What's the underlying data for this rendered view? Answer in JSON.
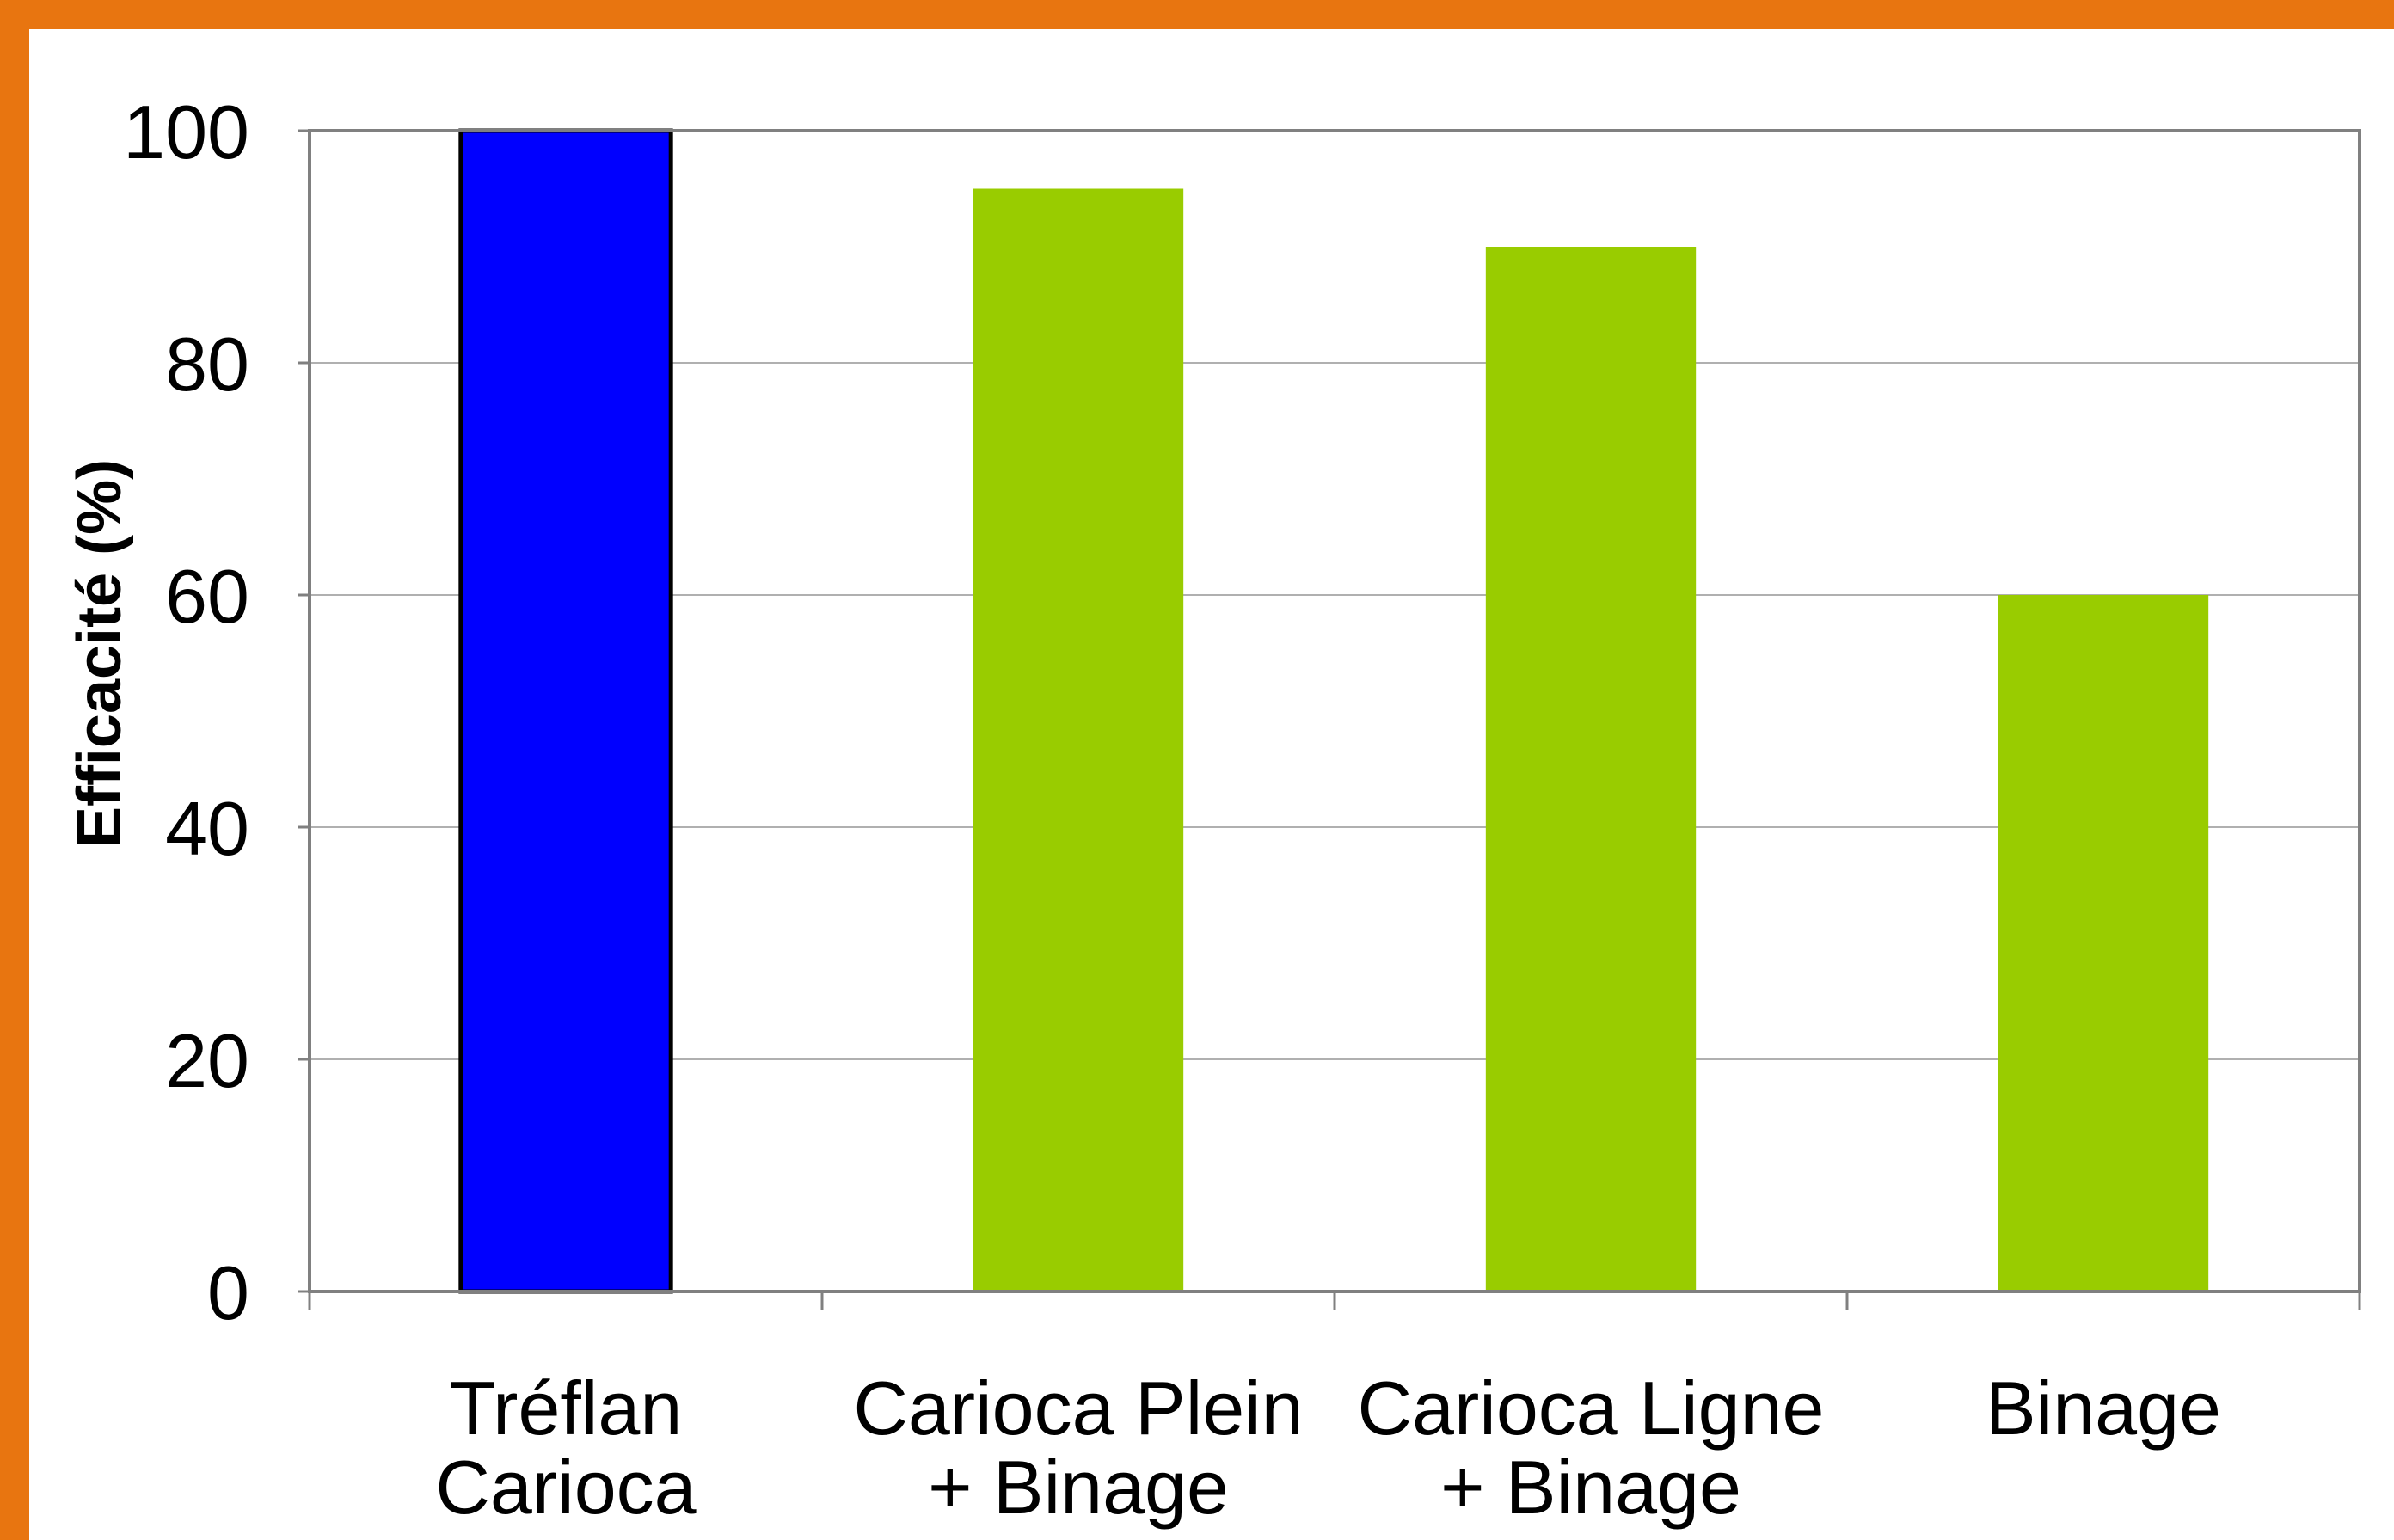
{
  "chart_data": {
    "type": "bar",
    "title": "",
    "xlabel": "",
    "ylabel": "Efficacité (%)",
    "ylim": [
      0,
      100
    ],
    "yticks": [
      0,
      20,
      40,
      60,
      80,
      100
    ],
    "grid": true,
    "categories": [
      [
        "Tréflan",
        "Carioca"
      ],
      [
        "Carioca Plein",
        "+ Binage"
      ],
      [
        "Carioca Ligne",
        "+ Binage"
      ],
      [
        "Binage"
      ]
    ],
    "values": [
      100,
      95,
      90,
      60
    ],
    "bar_colors": [
      "#0000ff",
      "#99cc00",
      "#99cc00",
      "#99cc00"
    ],
    "bar_outline": [
      "#000000",
      "none",
      "none",
      "none"
    ]
  },
  "colors": {
    "frame": "#e87510",
    "background": "#ffffff",
    "gridline": "#b0b0b0",
    "axis": "#808080"
  }
}
